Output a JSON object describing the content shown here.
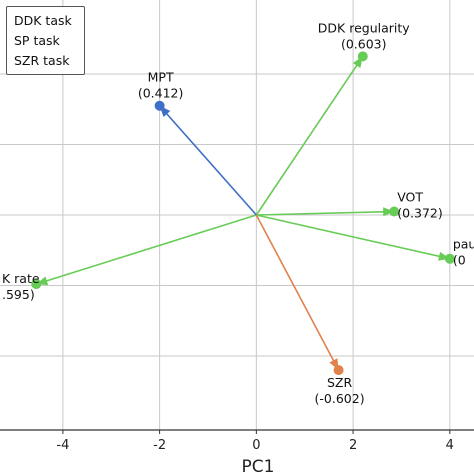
{
  "chart_data": {
    "type": "scatter",
    "title": "",
    "xlabel": "PC1",
    "ylabel": "",
    "xlim": [
      -5.3,
      4.5
    ],
    "ylim": [
      -3.05,
      3.05
    ],
    "xticks": [
      -4,
      -2,
      0,
      2,
      4
    ],
    "xtick_labels": [
      "-4",
      "-2",
      "0",
      "2",
      "4"
    ],
    "yticks": [
      -2,
      -1,
      0,
      1,
      2
    ],
    "grid": true,
    "legend": {
      "placement": "top-left",
      "entries": [
        "DDK task",
        "SP task",
        "SZR task"
      ]
    },
    "series": [
      {
        "name": "DDK task",
        "color": "#66cc55",
        "vectors": [
          {
            "label": "DDK regularity",
            "value": "(0.603)",
            "x": 2.2,
            "y": 2.25
          },
          {
            "label": "VOT",
            "value": "(0.372)",
            "x": 2.85,
            "y": 0.05
          },
          {
            "label": "pause",
            "value": "(0",
            "x": 4.0,
            "y": -0.62
          },
          {
            "label": "K rate",
            "value": ".595)",
            "x": -4.55,
            "y": -0.98
          }
        ]
      },
      {
        "name": "SP task",
        "color": "#3f6fc6",
        "vectors": [
          {
            "label": "MPT",
            "value": "(0.412)",
            "x": -2.0,
            "y": 1.55
          }
        ]
      },
      {
        "name": "SZR task",
        "color": "#e0824a",
        "vectors": [
          {
            "label": "SZR",
            "value": "(-0.602)",
            "x": 1.7,
            "y": -2.2
          }
        ]
      }
    ]
  }
}
